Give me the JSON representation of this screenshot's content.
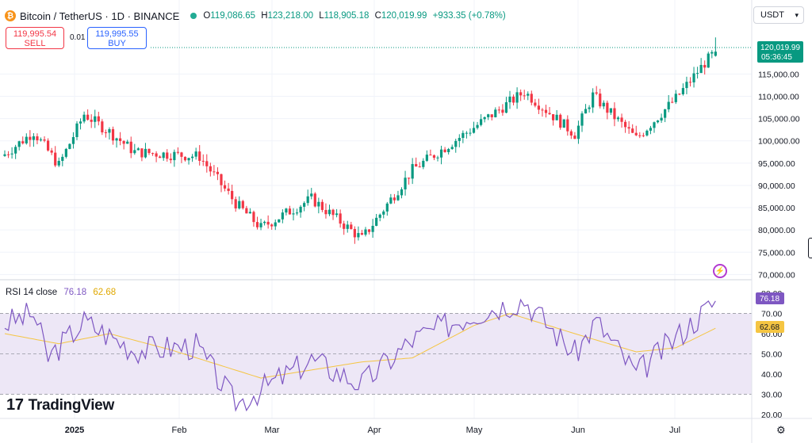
{
  "header": {
    "coin_icon": "bitcoin-icon",
    "symbol": "Bitcoin / TetherUS · 1D · BINANCE",
    "o_label": "O",
    "o": "119,086.65",
    "h_label": "H",
    "h": "123,218.00",
    "l_label": "L",
    "l": "118,905.18",
    "c_label": "C",
    "c": "120,019.99",
    "change": "+933.35 (+0.78%)"
  },
  "trade": {
    "sell_price": "119,995.54",
    "sell_label": "SELL",
    "spread": "0.01",
    "buy_price": "119,995.55",
    "buy_label": "BUY"
  },
  "currency": "USDT",
  "price_tag": {
    "price": "120,019.99",
    "countdown": "05:36:45"
  },
  "rsi_legend": {
    "name": "RSI 14 close",
    "rsi": "76.18",
    "ma": "62.68"
  },
  "rsi_tags": {
    "rsi": "76.18",
    "ma": "62.68"
  },
  "logo": {
    "text": "TradingView"
  },
  "colors": {
    "up": "#089981",
    "down": "#f23645",
    "rsi": "#7e57c2",
    "rsi_ma": "#f5c542",
    "band": "#ede7f6",
    "accent": "#2962ff"
  },
  "chart_data": [
    {
      "type": "candlestick",
      "title": "Bitcoin / TetherUS · 1D · BINANCE",
      "x_tick_labels": [
        "2025",
        "Feb",
        "Mar",
        "Apr",
        "May",
        "Jun",
        "Jul"
      ],
      "y_tick_labels": [
        "115,000.00",
        "110,000.00",
        "105,000.00",
        "100,000.00",
        "95,000.00",
        "90,000.00",
        "85,000.00",
        "80,000.00",
        "75,000.00",
        "70,000.00"
      ],
      "y_ticks": [
        115000,
        110000,
        105000,
        100000,
        95000,
        90000,
        85000,
        80000,
        75000,
        70000
      ],
      "ylim": [
        69000,
        124500
      ],
      "last_price": 120019.99,
      "key_points": [
        {
          "x": "Dec 29",
          "close": 97000
        },
        {
          "x": "Jan 6",
          "close": 102000
        },
        {
          "x": "Jan 13",
          "close": 94500
        },
        {
          "x": "Jan 20",
          "close": 106000
        },
        {
          "x": "Jan 27",
          "close": 102000
        },
        {
          "x": "Feb 3",
          "close": 97500
        },
        {
          "x": "Feb 21",
          "close": 96500
        },
        {
          "x": "Mar 3",
          "close": 86000
        },
        {
          "x": "Mar 10",
          "close": 80500
        },
        {
          "x": "Mar 24",
          "close": 87000
        },
        {
          "x": "Apr 7",
          "close": 78000
        },
        {
          "x": "Apr 21",
          "close": 93500
        },
        {
          "x": "May 8",
          "close": 103000
        },
        {
          "x": "May 22",
          "close": 111000
        },
        {
          "x": "Jun 5",
          "close": 101500
        },
        {
          "x": "Jun 10",
          "close": 110200
        },
        {
          "x": "Jun 22",
          "close": 100500
        },
        {
          "x": "Jul 3",
          "close": 109500
        },
        {
          "x": "Jul 11",
          "close": 117500
        },
        {
          "x": "Jul 14",
          "close": 120019.99
        }
      ]
    },
    {
      "type": "line",
      "title": "RSI 14 close",
      "y_tick_labels": [
        "80.00",
        "70.00",
        "60.00",
        "50.00",
        "40.00",
        "30.00",
        "20.00"
      ],
      "y_ticks": [
        80,
        70,
        60,
        50,
        40,
        30,
        20
      ],
      "ylim": [
        18,
        82
      ],
      "band": [
        30,
        70
      ],
      "dashed_levels": [
        70,
        50,
        30
      ],
      "series": [
        {
          "name": "RSI",
          "last": 76.18,
          "key_points": [
            {
              "x": "Dec 29",
              "y": 65
            },
            {
              "x": "Jan 6",
              "y": 70
            },
            {
              "x": "Jan 10",
              "y": 48
            },
            {
              "x": "Jan 20",
              "y": 66
            },
            {
              "x": "Feb 3",
              "y": 52
            },
            {
              "x": "Feb 20",
              "y": 54
            },
            {
              "x": "Mar 3",
              "y": 25
            },
            {
              "x": "Mar 24",
              "y": 47
            },
            {
              "x": "Apr 7",
              "y": 35
            },
            {
              "x": "Apr 21",
              "y": 57
            },
            {
              "x": "May 8",
              "y": 70
            },
            {
              "x": "May 22",
              "y": 77
            },
            {
              "x": "Jun 5",
              "y": 50
            },
            {
              "x": "Jun 11",
              "y": 66
            },
            {
              "x": "Jun 22",
              "y": 40
            },
            {
              "x": "Jul 3",
              "y": 58
            },
            {
              "x": "Jul 14",
              "y": 76.18
            }
          ]
        },
        {
          "name": "RSI MA",
          "last": 62.68,
          "key_points": [
            {
              "x": "Dec 29",
              "y": 60
            },
            {
              "x": "Jan 13",
              "y": 55
            },
            {
              "x": "Jan 27",
              "y": 60
            },
            {
              "x": "Feb 13",
              "y": 52
            },
            {
              "x": "Mar 10",
              "y": 38
            },
            {
              "x": "Apr 7",
              "y": 46
            },
            {
              "x": "Apr 21",
              "y": 48
            },
            {
              "x": "May 8",
              "y": 64
            },
            {
              "x": "May 18",
              "y": 70
            },
            {
              "x": "Jun 5",
              "y": 60
            },
            {
              "x": "Jun 22",
              "y": 51
            },
            {
              "x": "Jul 3",
              "y": 53
            },
            {
              "x": "Jul 14",
              "y": 62.68
            }
          ]
        }
      ]
    }
  ]
}
